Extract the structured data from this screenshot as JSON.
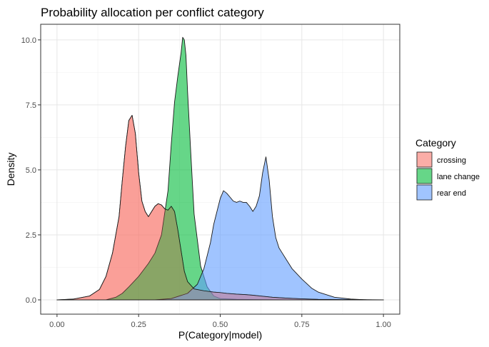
{
  "chart_data": {
    "type": "area",
    "subtype": "density",
    "title": "Probability allocation per conflict category",
    "xlabel": "P(Category|model)",
    "ylabel": "Density",
    "xlim": [
      -0.05,
      1.05
    ],
    "ylim": [
      -0.55,
      10.6
    ],
    "x_ticks": [
      0,
      0.25,
      0.5,
      0.75,
      1
    ],
    "x_tick_labels": [
      "0.00",
      "0.25",
      "0.50",
      "0.75",
      "1.00"
    ],
    "y_ticks": [
      0,
      2.5,
      5,
      7.5,
      10
    ],
    "y_tick_labels": [
      "0.0",
      "2.5",
      "5.0",
      "7.5",
      "10.0"
    ],
    "grid": true,
    "legend_position": "right",
    "legend_title": "Category",
    "series": [
      {
        "name": "crossing",
        "color": "#F8766D",
        "x": [
          0.0,
          0.05,
          0.1,
          0.13,
          0.15,
          0.17,
          0.19,
          0.2,
          0.21,
          0.22,
          0.23,
          0.24,
          0.25,
          0.26,
          0.27,
          0.28,
          0.29,
          0.3,
          0.31,
          0.32,
          0.33,
          0.34,
          0.35,
          0.36,
          0.37,
          0.38,
          0.39,
          0.4,
          0.42,
          0.45,
          0.48,
          0.5,
          0.52,
          0.55,
          0.58,
          0.6,
          0.63,
          0.66,
          0.7,
          0.75,
          0.8,
          0.9,
          1.0
        ],
        "y": [
          0.0,
          0.03,
          0.15,
          0.4,
          0.9,
          1.8,
          3.2,
          4.6,
          5.9,
          6.9,
          7.1,
          6.4,
          4.9,
          3.8,
          3.4,
          3.2,
          3.4,
          3.6,
          3.7,
          3.65,
          3.5,
          3.45,
          3.6,
          3.4,
          2.7,
          1.9,
          1.1,
          0.7,
          0.42,
          0.35,
          0.3,
          0.28,
          0.25,
          0.22,
          0.2,
          0.18,
          0.14,
          0.1,
          0.07,
          0.04,
          0.02,
          0.01,
          0.0
        ]
      },
      {
        "name": "lane change",
        "color": "#00BA38",
        "x": [
          0.0,
          0.15,
          0.18,
          0.2,
          0.22,
          0.25,
          0.28,
          0.3,
          0.32,
          0.34,
          0.35,
          0.36,
          0.37,
          0.38,
          0.385,
          0.39,
          0.395,
          0.4,
          0.41,
          0.42,
          0.44,
          0.46,
          0.48,
          0.5,
          0.55,
          0.6,
          0.7,
          0.8,
          1.0
        ],
        "y": [
          0.0,
          0.0,
          0.1,
          0.25,
          0.5,
          0.9,
          1.4,
          1.8,
          2.5,
          4.2,
          6.0,
          7.6,
          8.6,
          9.5,
          10.1,
          10.0,
          9.4,
          8.0,
          5.6,
          3.3,
          1.3,
          0.5,
          0.15,
          0.05,
          0.02,
          0.01,
          0.0,
          0.0,
          0.0
        ]
      },
      {
        "name": "rear end",
        "color": "#619CFF",
        "x": [
          0.0,
          0.3,
          0.35,
          0.4,
          0.43,
          0.45,
          0.47,
          0.48,
          0.49,
          0.5,
          0.51,
          0.52,
          0.53,
          0.54,
          0.55,
          0.56,
          0.57,
          0.58,
          0.59,
          0.6,
          0.61,
          0.62,
          0.63,
          0.64,
          0.65,
          0.66,
          0.67,
          0.68,
          0.69,
          0.7,
          0.72,
          0.75,
          0.78,
          0.8,
          0.85,
          0.9,
          0.95,
          1.0
        ],
        "y": [
          0.0,
          0.0,
          0.05,
          0.25,
          0.6,
          1.2,
          2.2,
          2.9,
          3.4,
          3.9,
          4.2,
          4.1,
          3.95,
          3.8,
          3.75,
          3.8,
          3.75,
          3.75,
          3.6,
          3.4,
          3.6,
          4.0,
          4.9,
          5.5,
          4.6,
          3.2,
          2.4,
          2.0,
          1.8,
          1.6,
          1.2,
          0.8,
          0.45,
          0.3,
          0.1,
          0.03,
          0.0,
          0.0
        ]
      },
      {
        "name": "crossing",
        "role": "overlap",
        "color": "#F8766D",
        "x": [
          0.0,
          0.05,
          0.1,
          0.13,
          0.15,
          0.17,
          0.19,
          0.2,
          0.21,
          0.22,
          0.23,
          0.24,
          0.25,
          0.26,
          0.27,
          0.28,
          0.29,
          0.3,
          0.31,
          0.32,
          0.33,
          0.34,
          0.35,
          0.36,
          0.37,
          0.38,
          0.39,
          0.4,
          0.42,
          0.45,
          0.48,
          0.5,
          0.52,
          0.55,
          0.58,
          0.6,
          0.63,
          0.66,
          0.7,
          0.75,
          0.8,
          0.9,
          1.0
        ],
        "y": [
          0.0,
          0.03,
          0.15,
          0.4,
          0.9,
          1.8,
          3.2,
          4.6,
          5.9,
          6.9,
          7.1,
          6.4,
          4.9,
          3.8,
          3.4,
          3.2,
          3.4,
          3.6,
          3.7,
          3.65,
          3.5,
          3.45,
          3.6,
          3.4,
          2.7,
          1.9,
          1.1,
          0.7,
          0.42,
          0.35,
          0.3,
          0.28,
          0.25,
          0.22,
          0.2,
          0.18,
          0.14,
          0.1,
          0.07,
          0.04,
          0.02,
          0.01,
          0.0
        ]
      }
    ]
  },
  "legend": {
    "title": "Category",
    "items": [
      {
        "label": "crossing",
        "color": "#F8766D"
      },
      {
        "label": "lane change",
        "color": "#00BA38"
      },
      {
        "label": "rear end",
        "color": "#619CFF"
      }
    ]
  }
}
